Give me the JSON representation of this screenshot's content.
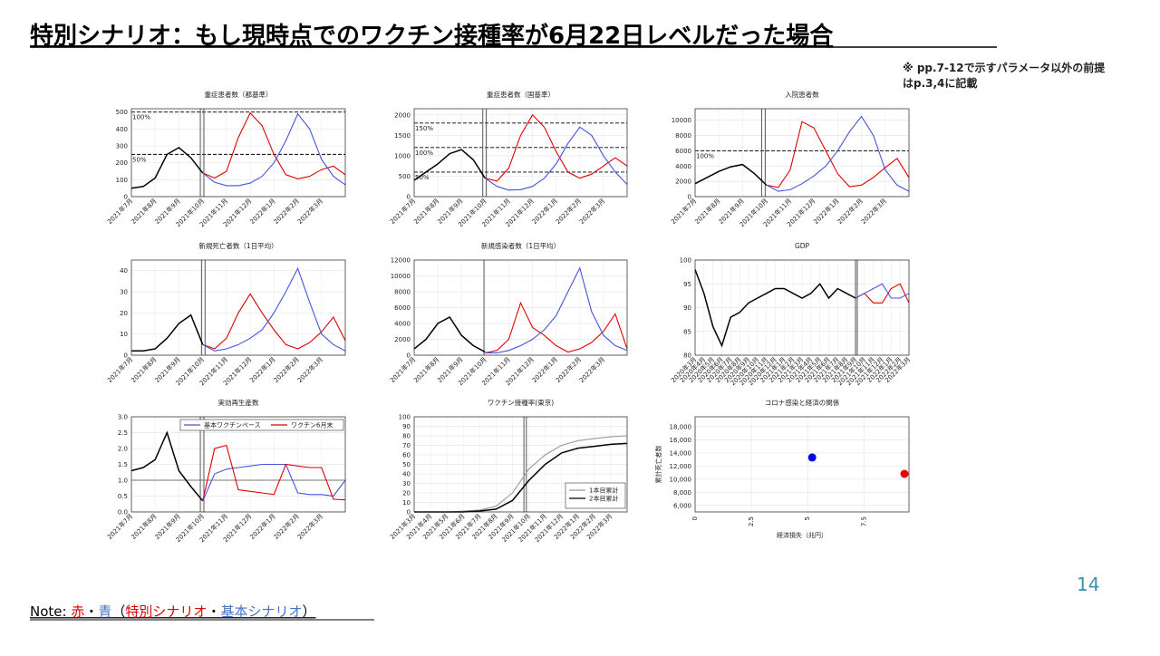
{
  "title": "特別シナリオ：もし現時点でのワクチン接種率が6月22日レベルだった場合",
  "side_note": [
    "※ pp.7-12で示すパラメータ以外の前提",
    "はp.3,4に記載"
  ],
  "page_number": "14",
  "footer_note": [
    {
      "text": "Note: ",
      "color": "#000000"
    },
    {
      "text": "赤",
      "color": "#e00000"
    },
    {
      "text": "・",
      "color": "#000000"
    },
    {
      "text": "青",
      "color": "#4472c4"
    },
    {
      "text": "（",
      "color": "#000000"
    },
    {
      "text": "特別シナリオ",
      "color": "#e00000"
    },
    {
      "text": "・",
      "color": "#000000"
    },
    {
      "text": "基本シナリオ",
      "color": "#4472c4"
    },
    {
      "text": "）",
      "color": "#000000"
    }
  ],
  "chart_data": [
    {
      "type": "line",
      "title": "重症患者数（都基準）",
      "categories": [
        "2021年7月",
        null,
        "2021年8月",
        null,
        "2021年9月",
        null,
        "2021年10月",
        null,
        "2021年11月",
        null,
        "2021年12月",
        null,
        "2022年1月",
        null,
        "2022年2月",
        null,
        "2022年3月",
        null,
        null
      ],
      "ylim": [
        0,
        520
      ],
      "yticks": [
        0,
        100,
        200,
        300,
        400,
        500
      ],
      "grid": true,
      "hlines": [
        {
          "value": 500,
          "label": "100%"
        },
        {
          "value": 250,
          "label": "50%"
        }
      ],
      "vlines": [
        5.8,
        6.1
      ],
      "series": [
        {
          "color": "#000000",
          "values": [
            50,
            60,
            110,
            250,
            290,
            230,
            140,
            null,
            null,
            null,
            null,
            null,
            null,
            null,
            null,
            null,
            null,
            null,
            null
          ]
        },
        {
          "color": "#e00000",
          "values": [
            null,
            null,
            null,
            null,
            null,
            null,
            140,
            110,
            150,
            350,
            495,
            420,
            250,
            130,
            105,
            120,
            160,
            180,
            130
          ]
        },
        {
          "color": "#4455dd",
          "values": [
            null,
            null,
            null,
            null,
            null,
            null,
            140,
            85,
            65,
            65,
            80,
            120,
            200,
            330,
            490,
            400,
            220,
            120,
            70
          ]
        }
      ]
    },
    {
      "type": "line",
      "title": "重症患者数（国基準）",
      "categories": [
        "2021年7月",
        null,
        "2021年8月",
        null,
        "2021年9月",
        null,
        "2021年10月",
        null,
        "2021年11月",
        null,
        "2021年12月",
        null,
        "2022年1月",
        null,
        "2022年2月",
        null,
        "2022年3月",
        null,
        null
      ],
      "ylim": [
        0,
        2150
      ],
      "yticks": [
        0,
        500,
        1000,
        1500,
        2000
      ],
      "grid": true,
      "hlines": [
        {
          "value": 1800,
          "label": "150%"
        },
        {
          "value": 1200,
          "label": "100%"
        },
        {
          "value": 600,
          "label": "50%"
        }
      ],
      "vlines": [
        5.8,
        6.1
      ],
      "series": [
        {
          "color": "#000000",
          "values": [
            400,
            600,
            800,
            1050,
            1150,
            900,
            450,
            null,
            null,
            null,
            null,
            null,
            null,
            null,
            null,
            null,
            null,
            null,
            null
          ]
        },
        {
          "color": "#e00000",
          "values": [
            null,
            null,
            null,
            null,
            null,
            null,
            450,
            380,
            700,
            1500,
            2000,
            1700,
            1100,
            600,
            450,
            550,
            750,
            950,
            750
          ]
        },
        {
          "color": "#4455dd",
          "values": [
            null,
            null,
            null,
            null,
            null,
            null,
            450,
            250,
            160,
            170,
            250,
            450,
            800,
            1300,
            1700,
            1500,
            1000,
            600,
            300
          ]
        }
      ]
    },
    {
      "type": "line",
      "title": "入院患者数",
      "categories": [
        "2021年7月",
        null,
        "2021年8月",
        null,
        "2021年9月",
        null,
        "2021年10月",
        null,
        "2021年11月",
        null,
        "2021年12月",
        null,
        "2022年1月",
        null,
        "2022年2月",
        null,
        "2022年3月",
        null,
        null
      ],
      "ylim": [
        0,
        11500
      ],
      "yticks": [
        0,
        2000,
        4000,
        6000,
        8000,
        10000
      ],
      "grid": true,
      "hlines": [
        {
          "value": 6000,
          "label": "100%"
        }
      ],
      "vlines": [
        5.6,
        5.9
      ],
      "series": [
        {
          "color": "#000000",
          "values": [
            1700,
            2500,
            3300,
            3900,
            4200,
            3000,
            1500,
            null,
            null,
            null,
            null,
            null,
            null,
            null,
            null,
            null,
            null,
            null,
            null
          ]
        },
        {
          "color": "#e00000",
          "values": [
            null,
            null,
            null,
            null,
            null,
            null,
            1500,
            1200,
            3500,
            9800,
            9000,
            6000,
            3000,
            1300,
            1500,
            2500,
            3800,
            5000,
            2500
          ]
        },
        {
          "color": "#4455dd",
          "values": [
            null,
            null,
            null,
            null,
            null,
            null,
            1500,
            700,
            900,
            1700,
            2700,
            4000,
            6000,
            8500,
            10500,
            8000,
            3500,
            1500,
            700
          ]
        }
      ]
    },
    {
      "type": "line",
      "title": "新規死亡者数（1日平均）",
      "categories": [
        "2021年7月",
        null,
        "2021年8月",
        null,
        "2021年9月",
        null,
        "2021年10月",
        null,
        "2021年11月",
        null,
        "2021年12月",
        null,
        "2022年1月",
        null,
        "2022年2月",
        null,
        "2022年3月",
        null,
        null
      ],
      "ylim": [
        0,
        45
      ],
      "yticks": [
        0,
        10,
        20,
        30,
        40
      ],
      "grid": true,
      "vlines": [
        5.9,
        6.2
      ],
      "series": [
        {
          "color": "#000000",
          "values": [
            2,
            2,
            3,
            8,
            15,
            19,
            5,
            null,
            null,
            null,
            null,
            null,
            null,
            null,
            null,
            null,
            null,
            null,
            null
          ]
        },
        {
          "color": "#e00000",
          "values": [
            null,
            null,
            null,
            null,
            null,
            null,
            5,
            3,
            8,
            20,
            29,
            20,
            12,
            5,
            3,
            6,
            11,
            18,
            7
          ]
        },
        {
          "color": "#4455dd",
          "values": [
            null,
            null,
            null,
            null,
            null,
            null,
            5,
            2,
            3,
            5,
            8,
            12,
            20,
            30,
            41,
            25,
            10,
            5,
            2
          ]
        }
      ]
    },
    {
      "type": "line",
      "title": "新規感染者数（1日平均）",
      "categories": [
        "2021年7月",
        null,
        "2021年8月",
        null,
        "2021年9月",
        null,
        "2021年10月",
        null,
        "2021年11月",
        null,
        "2021年12月",
        null,
        "2022年1月",
        null,
        "2022年2月",
        null,
        "2022年3月",
        null,
        null
      ],
      "ylim": [
        0,
        12000
      ],
      "yticks": [
        0,
        2000,
        4000,
        6000,
        8000,
        10000,
        12000
      ],
      "grid": true,
      "vlines": [
        5.9
      ],
      "series": [
        {
          "color": "#000000",
          "values": [
            800,
            2000,
            4000,
            4800,
            2500,
            1200,
            400,
            null,
            null,
            null,
            null,
            null,
            null,
            null,
            null,
            null,
            null,
            null,
            null
          ]
        },
        {
          "color": "#e00000",
          "values": [
            null,
            null,
            null,
            null,
            null,
            null,
            300,
            600,
            2000,
            6600,
            3500,
            2500,
            1200,
            400,
            800,
            1600,
            3000,
            5200,
            800
          ]
        },
        {
          "color": "#4455dd",
          "values": [
            null,
            null,
            null,
            null,
            null,
            null,
            300,
            300,
            600,
            1200,
            2000,
            3200,
            5000,
            8000,
            11000,
            5500,
            2500,
            1200,
            600
          ]
        }
      ]
    },
    {
      "type": "line",
      "title": "GDP",
      "categories": [
        "2020年3月",
        "2020年4月",
        "2020年5月",
        "2020年6月",
        "2020年7月",
        "2020年8月",
        "2020年9月",
        "2020年10月",
        "2020年11月",
        "2020年12月",
        "2021年1月",
        "2021年2月",
        "2021年3月",
        "2021年4月",
        "2021年5月",
        "2021年6月",
        "2021年7月",
        "2021年8月",
        "2021年9月",
        "2021年10月",
        "2021年11月",
        "2021年12月",
        "2022年1月",
        "2022年2月",
        "2022年3月"
      ],
      "ylim": [
        80,
        100
      ],
      "yticks": [
        80,
        85,
        90,
        95,
        100
      ],
      "grid": true,
      "vlines": [
        18,
        18.2
      ],
      "series": [
        {
          "color": "#000000",
          "values": [
            98,
            93,
            86,
            82,
            88,
            89,
            91,
            92,
            93,
            94,
            94,
            93,
            92,
            93,
            95,
            92,
            94,
            93,
            92,
            null,
            null,
            null,
            null,
            null,
            null
          ]
        },
        {
          "color": "#e00000",
          "values": [
            null,
            null,
            null,
            null,
            null,
            null,
            null,
            null,
            null,
            null,
            null,
            null,
            null,
            null,
            null,
            null,
            null,
            null,
            92,
            93,
            91,
            91,
            94,
            95,
            91
          ]
        },
        {
          "color": "#4455dd",
          "values": [
            null,
            null,
            null,
            null,
            null,
            null,
            null,
            null,
            null,
            null,
            null,
            null,
            null,
            null,
            null,
            null,
            null,
            null,
            92,
            93,
            94,
            95,
            92,
            92,
            93
          ]
        }
      ]
    },
    {
      "type": "line",
      "title": "実効再生産数",
      "categories": [
        "2021年7月",
        null,
        "2021年8月",
        null,
        "2021年9月",
        null,
        "2021年10月",
        null,
        "2021年11月",
        null,
        "2021年12月",
        null,
        "2022年1月",
        null,
        "2022年2月",
        null,
        "2022年3月",
        null,
        null
      ],
      "ylim": [
        0,
        3
      ],
      "yticks": [
        {
          "value": 0,
          "label": "0.0"
        },
        0.5,
        {
          "value": 1,
          "label": "1.0"
        },
        1.5,
        {
          "value": 2,
          "label": "2.0"
        },
        2.5,
        {
          "value": 3,
          "label": "3.0"
        }
      ],
      "grid": true,
      "hlines": [
        {
          "value": 1
        }
      ],
      "vlines": [
        5.8,
        6.1
      ],
      "legend": "top-right",
      "series": [
        {
          "color": "#000000",
          "values": [
            1.3,
            1.4,
            1.65,
            2.5,
            1.3,
            0.8,
            0.35,
            null,
            null,
            null,
            null,
            null,
            null,
            null,
            null,
            null,
            null,
            null,
            null
          ]
        },
        {
          "name": "基本ワクチンペース",
          "color": "#4455dd",
          "values": [
            null,
            null,
            null,
            null,
            null,
            null,
            0.35,
            1.2,
            1.35,
            1.4,
            1.45,
            1.5,
            1.5,
            1.5,
            0.6,
            0.55,
            0.55,
            0.5,
            1.0
          ]
        },
        {
          "name": "ワクチン6月末",
          "color": "#e00000",
          "values": [
            null,
            null,
            null,
            null,
            null,
            null,
            0.35,
            2.0,
            2.1,
            0.7,
            0.65,
            0.6,
            0.55,
            1.5,
            1.45,
            1.4,
            1.4,
            0.4,
            0.38
          ]
        }
      ]
    },
    {
      "type": "line",
      "title": "ワクチン接種率(東京)",
      "categories": [
        "2021年3月",
        "2021年4月",
        "2021年5月",
        "2021年6月",
        "2021年7月",
        "2021年8月",
        "2021年9月",
        "2021年10月",
        "2021年11月",
        "2021年12月",
        "2022年1月",
        "2022年2月",
        "2022年3月",
        null
      ],
      "ylim": [
        0,
        100
      ],
      "yticks": [
        0,
        10,
        20,
        30,
        40,
        50,
        60,
        70,
        80,
        90,
        100
      ],
      "grid": true,
      "vlines": [
        6.7,
        6.85
      ],
      "legend": "bottom-right",
      "series": [
        {
          "name": "1本目累計",
          "color": "#999999",
          "values": [
            0,
            0,
            0,
            1,
            2,
            6,
            20,
            45,
            60,
            70,
            75,
            77,
            79,
            80
          ]
        },
        {
          "name": "2本目累計",
          "color": "#000000",
          "values": [
            0,
            0,
            0,
            0,
            1,
            3,
            12,
            33,
            50,
            62,
            67,
            69,
            71,
            72
          ]
        }
      ]
    },
    {
      "type": "scatter",
      "title": "コロナ感染と経済の関係",
      "x_label": "経済損失（兆円）",
      "y_label": "累計死亡者数",
      "xlim": [
        0,
        9.5
      ],
      "xticks": [
        0,
        2.5,
        5,
        7.5
      ],
      "ylim": [
        5000,
        19500
      ],
      "yticks": [
        {
          "value": 6000,
          "label": "6,000"
        },
        {
          "value": 8000,
          "label": "8,000"
        },
        {
          "value": 10000,
          "label": "10,000"
        },
        {
          "value": 12000,
          "label": "12,000"
        },
        {
          "value": 14000,
          "label": "14,000"
        },
        {
          "value": 16000,
          "label": "16,000"
        },
        {
          "value": 18000,
          "label": "18,000"
        }
      ],
      "grid": true,
      "series": [
        {
          "color": "#0000ee",
          "x": [
            5.2
          ],
          "values": [
            13300
          ]
        },
        {
          "color": "#ee0000",
          "x": [
            9.3
          ],
          "values": [
            10800
          ]
        }
      ]
    }
  ]
}
